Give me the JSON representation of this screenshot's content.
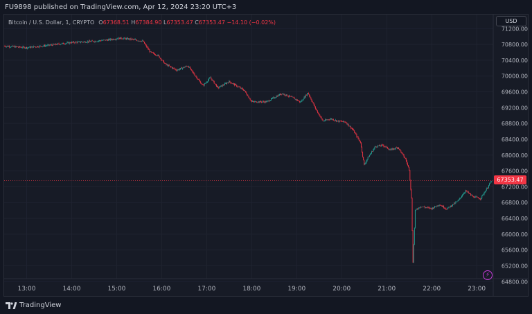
{
  "header": {
    "published_text": "FU9898 published on TradingView.com, Apr 12, 2024 23:20 UTC+3"
  },
  "legend": {
    "symbol": "Bitcoin / U.S. Dollar, 1, CRYPTO",
    "o_label": "O",
    "o_value": "67368.51",
    "h_label": "H",
    "h_value": "67384.90",
    "l_label": "L",
    "l_value": "67353.47",
    "c_label": "C",
    "c_value": "67353.47",
    "change": "−14.10 (−0.02%)"
  },
  "currency": "USD",
  "last_price": "67353.47",
  "footer": {
    "brand": "TradingView"
  },
  "icons": {
    "logo": "tradingview-logo-icon",
    "bolt": "lightning-bolt-icon"
  },
  "colors": {
    "up": "#26a69a",
    "down": "#f23645",
    "background": "#131722",
    "accent": "#c83bdb"
  },
  "chart_data": {
    "type": "candlestick",
    "title": "Bitcoin / U.S. Dollar, 1, CRYPTO",
    "x_ticks": [
      "13:00",
      "14:00",
      "15:00",
      "16:00",
      "17:00",
      "18:00",
      "19:00",
      "20:00",
      "21:00",
      "22:00",
      "23:00"
    ],
    "y_ticks": [
      "71200.00",
      "70800.00",
      "70400.00",
      "70000.00",
      "69600.00",
      "69200.00",
      "68800.00",
      "68400.00",
      "68000.00",
      "67600.00",
      "67200.00",
      "66800.00",
      "66400.00",
      "66000.00",
      "65600.00",
      "65200.00",
      "64800.00"
    ],
    "ylim": [
      64800,
      71200
    ],
    "xlim": [
      "12:30",
      "23:22"
    ],
    "grid": true,
    "price_path": [
      [
        "12:30",
        70760
      ],
      [
        "13:00",
        70720
      ],
      [
        "13:30",
        70780
      ],
      [
        "14:00",
        70850
      ],
      [
        "14:30",
        70880
      ],
      [
        "14:50",
        70920
      ],
      [
        "15:05",
        70960
      ],
      [
        "15:20",
        70930
      ],
      [
        "15:35",
        70880
      ],
      [
        "15:45",
        70600
      ],
      [
        "15:55",
        70520
      ],
      [
        "16:05",
        70300
      ],
      [
        "16:20",
        70150
      ],
      [
        "16:35",
        70260
      ],
      [
        "16:45",
        70000
      ],
      [
        "16:55",
        69760
      ],
      [
        "17:05",
        69960
      ],
      [
        "17:15",
        69700
      ],
      [
        "17:30",
        69860
      ],
      [
        "17:50",
        69640
      ],
      [
        "18:00",
        69350
      ],
      [
        "18:20",
        69350
      ],
      [
        "18:40",
        69560
      ],
      [
        "18:55",
        69450
      ],
      [
        "19:05",
        69340
      ],
      [
        "19:15",
        69580
      ],
      [
        "19:25",
        69180
      ],
      [
        "19:35",
        68860
      ],
      [
        "19:45",
        68920
      ],
      [
        "19:55",
        68860
      ],
      [
        "20:05",
        68840
      ],
      [
        "20:15",
        68640
      ],
      [
        "20:25",
        68320
      ],
      [
        "20:30",
        67750
      ],
      [
        "20:35",
        67940
      ],
      [
        "20:45",
        68220
      ],
      [
        "20:55",
        68250
      ],
      [
        "21:05",
        68130
      ],
      [
        "21:15",
        68200
      ],
      [
        "21:25",
        67900
      ],
      [
        "21:30",
        67640
      ],
      [
        "21:33",
        66900
      ],
      [
        "21:35",
        65300
      ],
      [
        "21:38",
        66600
      ],
      [
        "21:45",
        66700
      ],
      [
        "22:00",
        66650
      ],
      [
        "22:10",
        66750
      ],
      [
        "22:20",
        66640
      ],
      [
        "22:35",
        66840
      ],
      [
        "22:45",
        67100
      ],
      [
        "22:55",
        66950
      ],
      [
        "23:05",
        66900
      ],
      [
        "23:10",
        67050
      ],
      [
        "23:15",
        67200
      ],
      [
        "23:20",
        67353.47
      ]
    ]
  }
}
